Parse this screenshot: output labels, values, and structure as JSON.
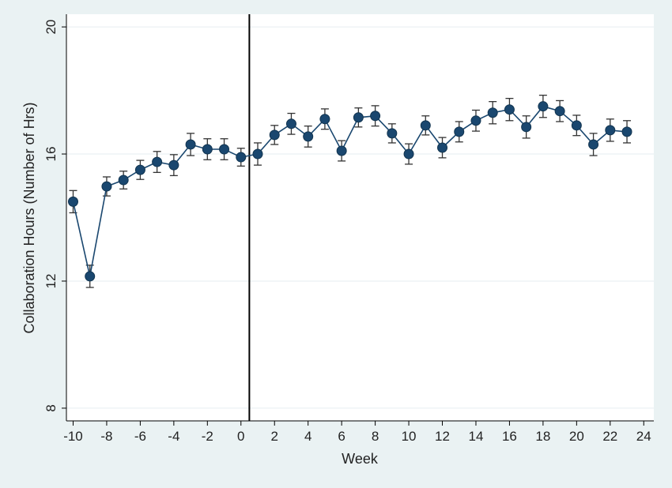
{
  "chart_data": {
    "type": "line",
    "title": "",
    "xlabel": "Week",
    "ylabel": "Collaboration Hours (Number of Hrs)",
    "xlim": [
      -10.4,
      24.6
    ],
    "ylim": [
      7.6,
      20.4
    ],
    "xticks": [
      -10,
      -8,
      -6,
      -4,
      -2,
      0,
      2,
      4,
      6,
      8,
      10,
      12,
      14,
      16,
      18,
      20,
      22,
      24
    ],
    "xtick_labels": [
      "-10",
      "-8",
      "-6",
      "-4",
      "-2",
      "0",
      "2",
      "4",
      "6",
      "8",
      "10",
      "12",
      "14",
      "16",
      "18",
      "20",
      "22",
      "24"
    ],
    "yticks": [
      8,
      12,
      16,
      20
    ],
    "ytick_labels": [
      "8",
      "12",
      "16",
      "20"
    ],
    "grid": "horizontal",
    "reference_line_x": 0.5,
    "colors": {
      "background": "#eaf2f3",
      "plot_background": "#ffffff",
      "grid": "#e6eef0",
      "marker": "#1a476f",
      "line": "#1a476f",
      "error_bar": "#333333",
      "reference_line": "#000000"
    },
    "series": [
      {
        "x": [
          -10,
          -9,
          -8,
          -7,
          -6,
          -5,
          -4,
          -3,
          -2,
          -1,
          0,
          1,
          2,
          3,
          4,
          5,
          6,
          7,
          8,
          9,
          10,
          11,
          12,
          13,
          14,
          15,
          16,
          17,
          18,
          19,
          20,
          21,
          22,
          23
        ],
        "y": [
          14.5,
          12.15,
          14.98,
          15.18,
          15.5,
          15.75,
          15.65,
          16.3,
          16.15,
          16.15,
          15.9,
          16.0,
          16.6,
          16.95,
          16.55,
          17.1,
          16.1,
          17.15,
          17.2,
          16.65,
          16.0,
          16.9,
          16.2,
          16.7,
          17.05,
          17.3,
          17.4,
          16.85,
          17.5,
          17.35,
          16.9,
          16.3,
          16.75,
          16.7
        ],
        "lower": [
          14.15,
          11.8,
          14.68,
          14.9,
          15.2,
          15.42,
          15.32,
          15.95,
          15.82,
          15.82,
          15.62,
          15.65,
          16.3,
          16.62,
          16.22,
          16.78,
          15.78,
          16.85,
          16.88,
          16.35,
          15.68,
          16.6,
          15.88,
          16.38,
          16.72,
          16.95,
          17.05,
          16.5,
          17.15,
          17.02,
          16.58,
          15.95,
          16.4,
          16.35
        ],
        "upper": [
          14.85,
          12.5,
          15.28,
          15.46,
          15.8,
          16.08,
          15.98,
          16.65,
          16.48,
          16.48,
          16.18,
          16.35,
          16.9,
          17.28,
          16.88,
          17.42,
          16.42,
          17.45,
          17.52,
          16.95,
          16.32,
          17.2,
          16.52,
          17.02,
          17.38,
          17.65,
          17.75,
          17.2,
          17.85,
          17.68,
          17.22,
          16.65,
          17.1,
          17.05
        ]
      }
    ]
  }
}
